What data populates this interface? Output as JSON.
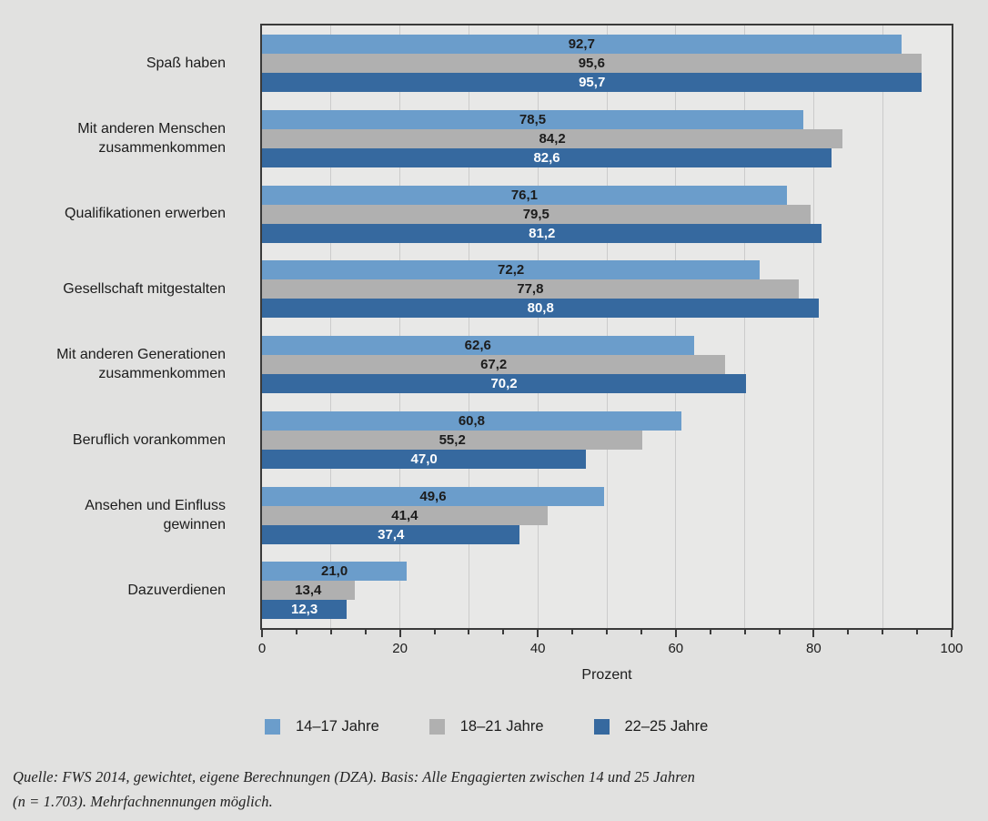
{
  "chart_data": {
    "type": "bar",
    "orientation": "horizontal",
    "title": "",
    "xlabel": "Prozent",
    "xlim": [
      0,
      100
    ],
    "x_major_ticks": [
      0,
      20,
      40,
      60,
      80,
      100
    ],
    "x_minor_tick_step": 5,
    "gridline_step": 10,
    "grid": true,
    "legend_position": "bottom",
    "value_decimal_separator": ",",
    "categories": [
      "Spaß haben",
      "Mit anderen Menschen\nzusammenkommen",
      "Qualifikationen erwerben",
      "Gesellschaft mitgestalten",
      "Mit anderen Generationen\nzusammenkommen",
      "Beruflich vorankommen",
      "Ansehen und Einfluss\ngewinnen",
      "Dazuverdienen"
    ],
    "series": [
      {
        "name": "14–17 Jahre",
        "color": "#6b9dcb",
        "value_text_color": "#1c1c1c",
        "values": [
          92.7,
          78.5,
          76.1,
          72.2,
          62.6,
          60.8,
          49.6,
          21.0
        ]
      },
      {
        "name": "18–21 Jahre",
        "color": "#b0b0b0",
        "value_text_color": "#1c1c1c",
        "values": [
          95.6,
          84.2,
          79.5,
          77.8,
          67.2,
          55.2,
          41.4,
          13.4
        ]
      },
      {
        "name": "22–25 Jahre",
        "color": "#36699f",
        "value_text_color": "#ffffff",
        "values": [
          95.7,
          82.6,
          81.2,
          80.8,
          70.2,
          47.0,
          37.4,
          12.3
        ]
      }
    ],
    "colors": {
      "page_background": "#e1e1e0",
      "plot_background": "#e8e8e7",
      "gridline": "#cbcbcb",
      "axis": "#3a3a3a",
      "text": "#1c1c1c"
    }
  },
  "source_note": {
    "line1": "Quelle: FWS 2014, gewichtet, eigene Berechnungen (DZA). Basis: Alle Engagierten zwischen 14 und 25 Jahren",
    "line2": "(n = 1.703). Mehrfachnennungen möglich."
  }
}
